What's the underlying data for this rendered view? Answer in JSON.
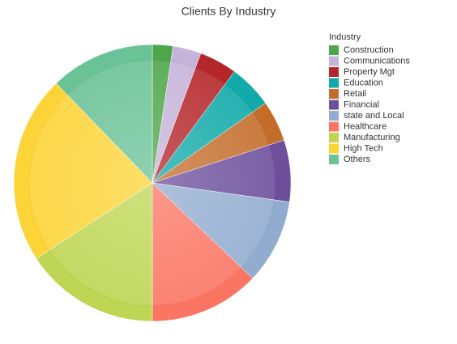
{
  "chart_data": {
    "type": "pie",
    "title": "Clients By Industry",
    "legend_title": "Industry",
    "categories": [
      "Construction",
      "Communications",
      "Property Mgt",
      "Education",
      "Retail",
      "Financial",
      "state and Local",
      "Healthcare",
      "Manufacturing",
      "High Tech",
      "Others"
    ],
    "values": [
      2.4,
      3.3,
      4.4,
      5.1,
      4.8,
      7.2,
      9.9,
      12.9,
      15.8,
      22.0,
      12.2
    ],
    "colors": [
      "#4ea64a",
      "#c5b3d9",
      "#b5262a",
      "#11a9a9",
      "#c46d2b",
      "#6d4f9c",
      "#92acd0",
      "#fb7563",
      "#bed653",
      "#fdd437",
      "#6ac297"
    ]
  }
}
